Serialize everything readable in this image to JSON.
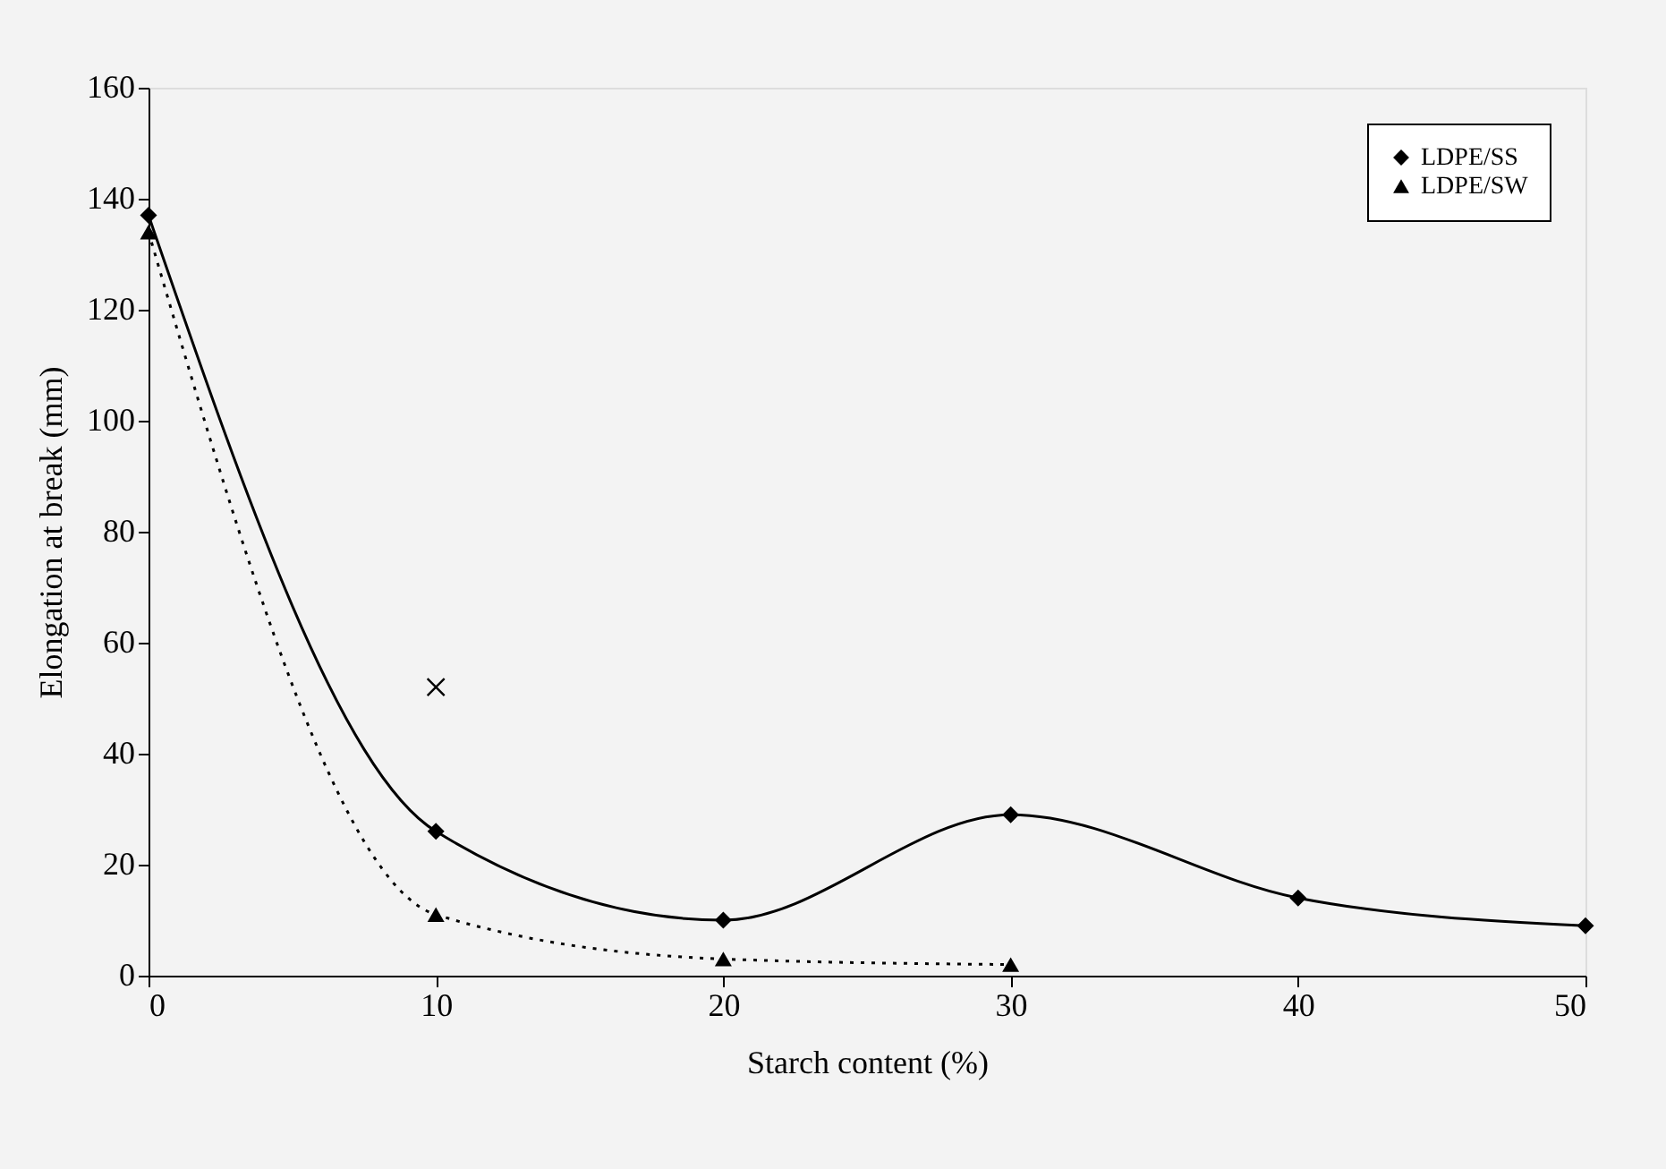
{
  "chart_data": {
    "type": "line",
    "xlabel": "Starch content (%)",
    "ylabel": "Elongation at break (mm)",
    "xlim": [
      0,
      50
    ],
    "xticks": [
      0,
      10,
      20,
      30,
      40,
      50
    ],
    "ylim": [
      0,
      160
    ],
    "yticks": [
      0,
      20,
      40,
      60,
      80,
      100,
      120,
      140,
      160
    ],
    "grid": false,
    "legend": "top right",
    "series": [
      {
        "name": "LDPE/SS",
        "color": "#000000",
        "x": [
          0,
          10,
          20,
          30,
          40,
          50
        ],
        "values": [
          137,
          26,
          10,
          29,
          14,
          9
        ],
        "marker": "diamond",
        "line_style": "solid"
      },
      {
        "name": "LDPE/SW",
        "color": "#000000",
        "x": [
          0,
          10,
          20,
          30
        ],
        "values": [
          134,
          11,
          3,
          2
        ],
        "marker": "triangle",
        "line_style": "dotted"
      },
      {
        "type": "scatter",
        "color": "#000000",
        "x": [
          10
        ],
        "values": [
          52
        ],
        "marker": "cross"
      }
    ]
  }
}
